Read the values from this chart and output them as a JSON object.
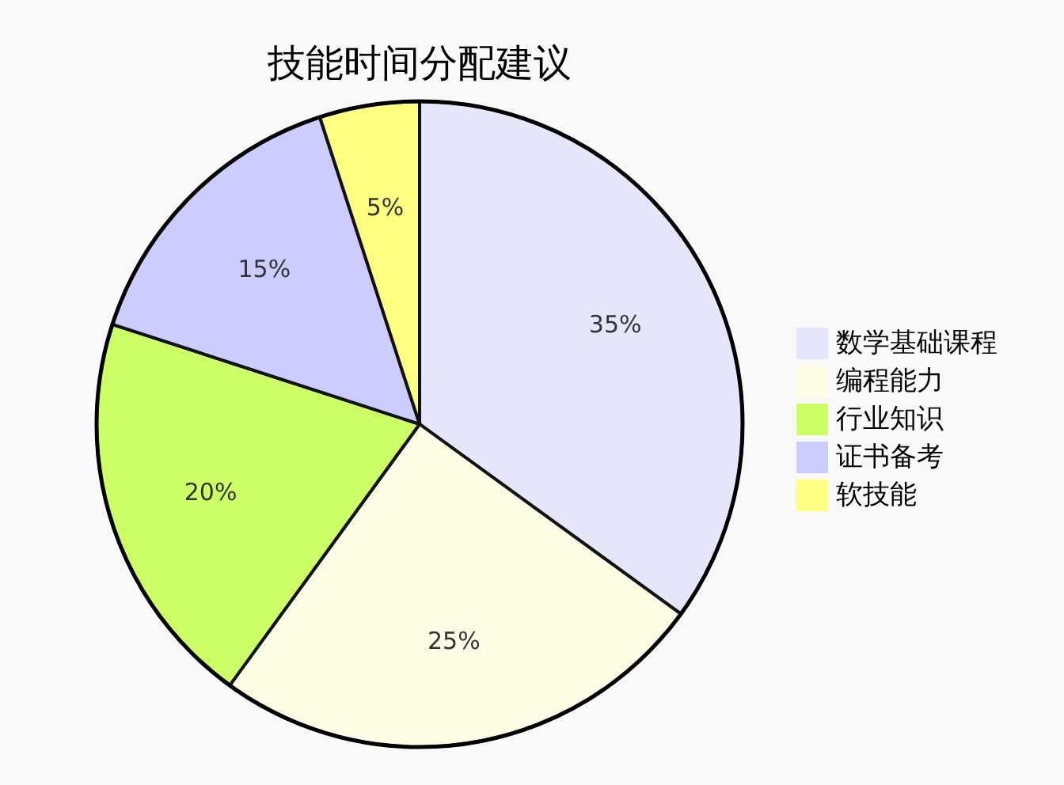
{
  "chart_data": {
    "type": "pie",
    "title": "技能时间分配建议",
    "categories": [
      "数学基础课程",
      "编程能力",
      "行业知识",
      "证书备考",
      "软技能"
    ],
    "values": [
      35,
      25,
      20,
      15,
      5
    ],
    "value_labels": [
      "35%",
      "25%",
      "20%",
      "15%",
      "5%"
    ],
    "colors": [
      "#e6e6fa",
      "#fdfde6",
      "#ccff66",
      "#ccccff",
      "#ffff80"
    ],
    "legend": "right"
  }
}
